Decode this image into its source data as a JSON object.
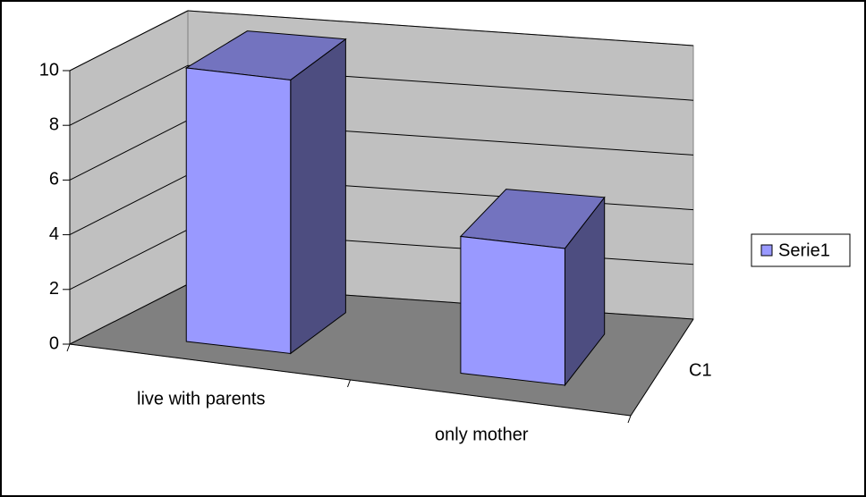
{
  "chart_data": {
    "type": "bar3d",
    "categories": [
      "live with parents",
      "only mother"
    ],
    "series": [
      {
        "name": "Serie1",
        "color": "#9999ff",
        "values": [
          10,
          5
        ]
      }
    ],
    "depth_categories": [
      "C1"
    ],
    "ylim": [
      0,
      10
    ],
    "yticks": [
      0,
      2,
      4,
      6,
      8,
      10
    ],
    "grid": true,
    "legend": "right"
  }
}
